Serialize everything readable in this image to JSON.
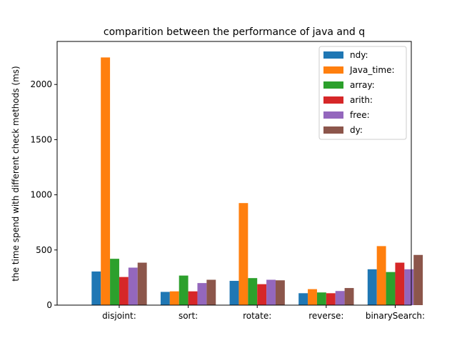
{
  "chart_data": {
    "type": "bar",
    "title": "comparition between the performance of java and q",
    "xlabel": "",
    "ylabel": "the time spend with different check methods (ms)",
    "categories": [
      "disjoint:",
      "sort:",
      "rotate:",
      "reverse:",
      "binarySearch:"
    ],
    "ylim": [
      0,
      2390
    ],
    "yticks": [
      0,
      500,
      1000,
      1500,
      2000
    ],
    "grid": false,
    "legend_position": "top-right",
    "series": [
      {
        "name": "ndy:",
        "color": "#1f77b4",
        "values": [
          305,
          120,
          220,
          108,
          325
        ]
      },
      {
        "name": "Java_time:",
        "color": "#ff7f0e",
        "values": [
          2245,
          125,
          925,
          145,
          535
        ]
      },
      {
        "name": "array:",
        "color": "#2ca02c",
        "values": [
          420,
          268,
          245,
          115,
          300
        ]
      },
      {
        "name": "arith:",
        "color": "#d62728",
        "values": [
          255,
          125,
          190,
          108,
          385
        ]
      },
      {
        "name": "free:",
        "color": "#9467bd",
        "values": [
          340,
          200,
          230,
          128,
          325
        ]
      },
      {
        "name": "dy:",
        "color": "#8c564b",
        "values": [
          385,
          230,
          225,
          155,
          455
        ]
      }
    ]
  }
}
